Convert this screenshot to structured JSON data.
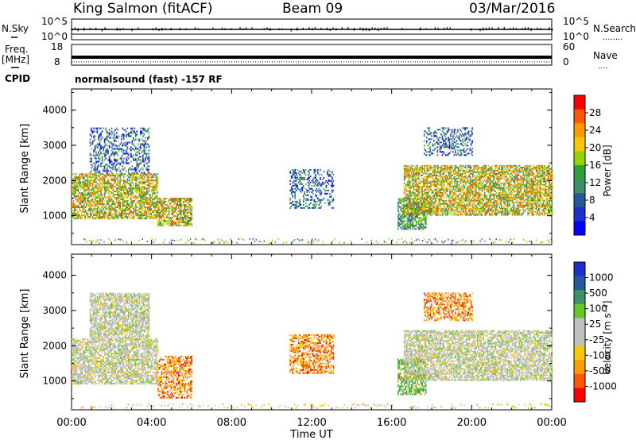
{
  "header": {
    "radar": "King Salmon (fitACF)",
    "beam": "Beam 09",
    "date": "03/Mar/2016"
  },
  "noise_panel": {
    "left_label": "N.Sky",
    "left_ticks": [
      "10^5",
      "10^0"
    ],
    "right_ticks": [
      "10^5",
      "10^0"
    ],
    "right_label": "N.Search",
    "dots": "........"
  },
  "freq_panel": {
    "left_label_1": "Freq.",
    "left_label_2": "[MHz]",
    "left_ticks": [
      "18",
      "8"
    ],
    "right_ticks": [
      "60",
      "0"
    ],
    "right_label": "Nave",
    "dots": "...."
  },
  "cpid": {
    "label": "CPID",
    "text": "normalsound (fast) -157 RF"
  },
  "x_axis": {
    "ticks": [
      "00:00",
      "04:00",
      "08:00",
      "12:00",
      "16:00",
      "20:00",
      "00:00"
    ],
    "label": "Time UT"
  },
  "chart_data": [
    {
      "type": "heatmap",
      "panel": "power",
      "xlabel": "Time UT",
      "ylabel": "Slant Range [km]",
      "xlim_hours": [
        0,
        24
      ],
      "ylim": [
        180,
        4600
      ],
      "y_ticks": [
        "1000",
        "2000",
        "3000",
        "4000"
      ],
      "colorbar": {
        "label": "Power [dB]",
        "ticks": [
          "28",
          "24",
          "20",
          "16",
          "12",
          "8",
          "4"
        ],
        "colors": [
          "#ff0000",
          "#ff5a00",
          "#ff9a00",
          "#f7c800",
          "#95d400",
          "#2ea23a",
          "#3f8f6a",
          "#28589c",
          "#1e2fd0",
          "#0000ff"
        ]
      },
      "regions": [
        {
          "t": [
            0.0,
            4.3
          ],
          "r": [
            900,
            2200
          ],
          "level": "high"
        },
        {
          "t": [
            0.9,
            3.9
          ],
          "r": [
            2200,
            3500
          ],
          "level": "low"
        },
        {
          "t": [
            4.3,
            6.0
          ],
          "r": [
            700,
            1500
          ],
          "level": "high"
        },
        {
          "t": [
            10.9,
            13.1
          ],
          "r": [
            1200,
            2300
          ],
          "level": "low"
        },
        {
          "t": [
            16.3,
            17.7
          ],
          "r": [
            600,
            1500
          ],
          "level": "mid"
        },
        {
          "t": [
            16.6,
            24.0
          ],
          "r": [
            1000,
            2400
          ],
          "level": "high"
        },
        {
          "t": [
            17.6,
            20.0
          ],
          "r": [
            2700,
            3500
          ],
          "level": "low"
        }
      ]
    },
    {
      "type": "heatmap",
      "panel": "velocity",
      "xlabel": "Time UT",
      "ylabel": "Slant Range [km]",
      "xlim_hours": [
        0,
        24
      ],
      "ylim": [
        180,
        4600
      ],
      "y_ticks": [
        "1000",
        "2000",
        "3000",
        "4000"
      ],
      "colorbar": {
        "label": "Velocity [m s⁻¹]",
        "ticks": [
          "1000",
          "500",
          "100",
          "25",
          "-25",
          "-100",
          "-500",
          "-1000"
        ],
        "colors": [
          "#1e2fd0",
          "#28589c",
          "#3f8f6a",
          "#66c62c",
          "#c0c0c0",
          "#c0c0c0",
          "#f7c800",
          "#ff9a00",
          "#ff5a00",
          "#ff0000"
        ]
      },
      "regions": [
        {
          "t": [
            0.0,
            4.3
          ],
          "r": [
            900,
            2200
          ],
          "v": "ground"
        },
        {
          "t": [
            0.9,
            3.9
          ],
          "r": [
            2200,
            3500
          ],
          "v": "ground"
        },
        {
          "t": [
            4.3,
            6.0
          ],
          "r": [
            500,
            1700
          ],
          "v": "negative"
        },
        {
          "t": [
            10.9,
            13.1
          ],
          "r": [
            1200,
            2300
          ],
          "v": "negative"
        },
        {
          "t": [
            16.3,
            17.7
          ],
          "r": [
            600,
            1600
          ],
          "v": "positive"
        },
        {
          "t": [
            16.6,
            24.0
          ],
          "r": [
            1000,
            2400
          ],
          "v": "ground"
        },
        {
          "t": [
            17.6,
            20.0
          ],
          "r": [
            2700,
            3500
          ],
          "v": "negative"
        }
      ]
    }
  ]
}
